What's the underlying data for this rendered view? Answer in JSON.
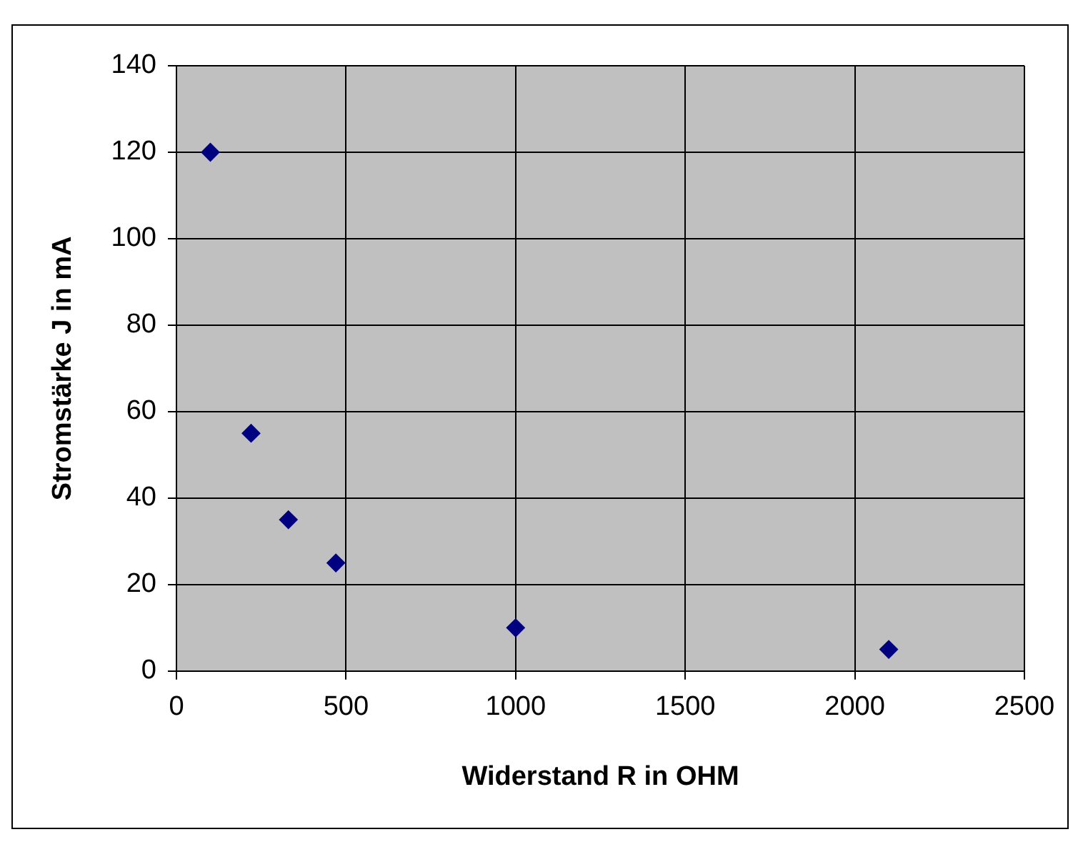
{
  "chart_data": {
    "type": "scatter",
    "xlabel": "Widerstand R in OHM",
    "ylabel": "Stromstärke J in mA",
    "x": [
      100,
      220,
      330,
      470,
      1000,
      2100
    ],
    "series": [
      {
        "color": "#000080",
        "values": [
          120,
          55,
          35,
          25,
          10,
          5
        ]
      }
    ],
    "xlim": [
      0,
      2500
    ],
    "xticks": [
      0,
      500,
      1000,
      1500,
      2000,
      2500
    ],
    "ylim": [
      0,
      140
    ],
    "yticks": [
      0,
      20,
      40,
      60,
      80,
      100,
      120,
      140
    ],
    "grid": true,
    "legend": false,
    "marker": "diamond"
  }
}
